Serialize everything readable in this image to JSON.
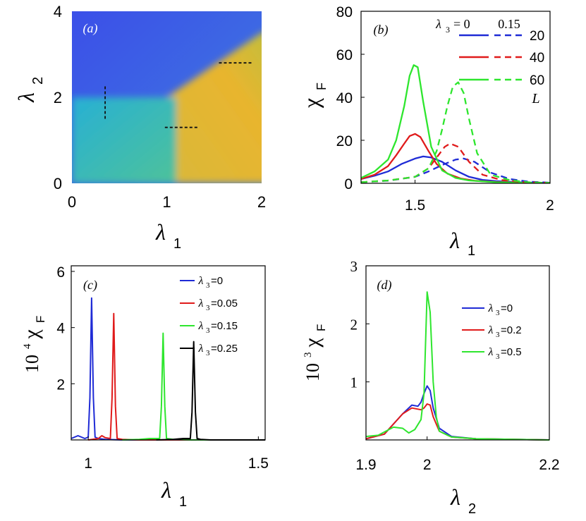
{
  "chart_data": [
    {
      "id": "a",
      "type": "heatmap",
      "panel_label": "(a)",
      "xlabel": "λ",
      "xlabel_sub": "1",
      "ylabel": "λ",
      "ylabel_sub": "2",
      "xlim": [
        0,
        2
      ],
      "ylim": [
        0,
        4
      ],
      "xticks": [
        0,
        1,
        2
      ],
      "yticks": [
        0,
        2,
        4
      ],
      "regions": [
        {
          "name": "upper",
          "color": "#3d5ce6"
        },
        {
          "name": "lower-left",
          "color": "#2ab8c4"
        },
        {
          "name": "right",
          "color": "#e6b830"
        }
      ],
      "boundaries": [
        {
          "from": [
            0,
            2.0
          ],
          "to": [
            1.0,
            2.0
          ]
        },
        {
          "from": [
            1.0,
            2.0
          ],
          "to": [
            2.0,
            3.5
          ]
        },
        {
          "from": [
            1.1,
            0
          ],
          "to": [
            1.1,
            2.0
          ]
        }
      ],
      "dashed_lines": [
        {
          "from": [
            0.35,
            1.5
          ],
          "to": [
            0.35,
            2.3
          ]
        },
        {
          "from": [
            0.98,
            1.3
          ],
          "to": [
            1.33,
            1.3
          ]
        },
        {
          "from": [
            1.55,
            2.8
          ],
          "to": [
            1.9,
            2.8
          ]
        }
      ]
    },
    {
      "id": "b",
      "type": "line",
      "panel_label": "(b)",
      "xlabel": "λ",
      "xlabel_sub": "1",
      "ylabel": "χ",
      "ylabel_sub": "F",
      "xlim": [
        1.3,
        2.0
      ],
      "ylim": [
        0,
        80
      ],
      "xtick_labels": [
        {
          "value": 1.5,
          "label": "1.5"
        },
        {
          "value": 2,
          "label": "2"
        }
      ],
      "yticks": [
        0,
        20,
        40,
        60,
        80
      ],
      "legend_header": {
        "lambda3": "λ",
        "sub": "3",
        "eq": "= 0",
        "col2": "0.15",
        "size_label": "L"
      },
      "legend_sizes": [
        "20",
        "40",
        "60"
      ],
      "series": [
        {
          "name": "λ3=0, L=20",
          "color": "#1f2bd6",
          "dash": false,
          "x": [
            1.3,
            1.35,
            1.4,
            1.45,
            1.5,
            1.53,
            1.56,
            1.6,
            1.65,
            1.7,
            1.75,
            1.8,
            1.9,
            2.0
          ],
          "y": [
            2,
            3.5,
            5.5,
            9,
            11.5,
            12.5,
            12,
            10,
            6,
            3,
            1.6,
            1,
            0.4,
            0.2
          ]
        },
        {
          "name": "λ3=0, L=40",
          "color": "#e01b1b",
          "dash": false,
          "x": [
            1.3,
            1.35,
            1.4,
            1.43,
            1.46,
            1.48,
            1.5,
            1.52,
            1.55,
            1.58,
            1.62,
            1.67,
            1.72,
            1.8,
            1.9,
            2.0
          ],
          "y": [
            2,
            4,
            8,
            13,
            18.5,
            22,
            23,
            21.5,
            15,
            9,
            4.5,
            2.2,
            1.2,
            0.6,
            0.3,
            0.2
          ]
        },
        {
          "name": "λ3=0, L=60",
          "color": "#2ee62e",
          "dash": false,
          "x": [
            1.3,
            1.35,
            1.4,
            1.43,
            1.46,
            1.48,
            1.495,
            1.51,
            1.53,
            1.56,
            1.6,
            1.65,
            1.7,
            1.8,
            1.9,
            2.0
          ],
          "y": [
            2.5,
            5.5,
            11,
            20,
            36,
            50,
            55,
            54,
            38,
            17,
            6,
            2.5,
            1.3,
            0.5,
            0.3,
            0.2
          ]
        },
        {
          "name": "λ3=0.15, L=20",
          "color": "#1f2bd6",
          "dash": true,
          "x": [
            1.3,
            1.4,
            1.5,
            1.55,
            1.6,
            1.65,
            1.68,
            1.72,
            1.78,
            1.85,
            1.92,
            2.0
          ],
          "y": [
            0.5,
            1.2,
            3,
            5.5,
            8.5,
            11,
            11.5,
            10,
            5,
            2,
            0.8,
            0.3
          ]
        },
        {
          "name": "λ3=0.15, L=40",
          "color": "#e01b1b",
          "dash": true,
          "x": [
            1.3,
            1.4,
            1.5,
            1.55,
            1.58,
            1.61,
            1.63,
            1.66,
            1.7,
            1.75,
            1.82,
            1.9,
            2.0
          ],
          "y": [
            0.5,
            1.3,
            3,
            7,
            12,
            17,
            18.5,
            17,
            10,
            4,
            1.5,
            0.6,
            0.2
          ]
        },
        {
          "name": "λ3=0.15, L=60",
          "color": "#2ee62e",
          "dash": true,
          "x": [
            1.3,
            1.4,
            1.5,
            1.55,
            1.58,
            1.6,
            1.62,
            1.64,
            1.66,
            1.68,
            1.7,
            1.73,
            1.78,
            1.85,
            1.92,
            2.0
          ],
          "y": [
            0.5,
            1.3,
            3,
            7,
            15,
            25,
            36,
            45,
            47,
            42,
            30,
            14,
            4,
            1.5,
            0.5,
            0.2
          ]
        }
      ]
    },
    {
      "id": "c",
      "type": "line",
      "panel_label": "(c)",
      "xlabel": "λ",
      "xlabel_sub": "1",
      "ylabel_prefix": "10",
      "ylabel_exp": "4",
      "ylabel": "χ",
      "ylabel_sub": "F",
      "xlim": [
        0.95,
        1.52
      ],
      "ylim": [
        0,
        6.2
      ],
      "xtick_labels": [
        {
          "value": 1,
          "label": "1"
        },
        {
          "value": 1.5,
          "label": "1.5"
        }
      ],
      "yticks": [
        2,
        4,
        6
      ],
      "legend": [
        {
          "lambda": "λ",
          "sub": "3",
          "value": "=0",
          "color": "#1f2bd6"
        },
        {
          "lambda": "λ",
          "sub": "3",
          "value": "=0.05",
          "color": "#e01b1b"
        },
        {
          "lambda": "λ",
          "sub": "3",
          "value": "=0.15",
          "color": "#2ee62e"
        },
        {
          "lambda": "λ",
          "sub": "3",
          "value": "=0.25",
          "color": "#000000"
        }
      ],
      "series": [
        {
          "name": "λ3=0",
          "color": "#1f2bd6",
          "x": [
            0.95,
            0.97,
            0.98,
            0.99,
            1.0,
            1.005,
            1.01,
            1.015,
            1.02,
            1.03,
            1.05,
            1.1,
            1.52
          ],
          "y": [
            0.05,
            0.15,
            0.1,
            0.05,
            0.1,
            1.5,
            5.05,
            1.5,
            0.1,
            0.05,
            0.02,
            0.0,
            0.0
          ]
        },
        {
          "name": "λ3=0.05",
          "color": "#e01b1b",
          "x": [
            1.0,
            1.03,
            1.04,
            1.05,
            1.065,
            1.07,
            1.075,
            1.08,
            1.085,
            1.1,
            1.15,
            1.52
          ],
          "y": [
            0.0,
            0.05,
            0.15,
            0.08,
            0.05,
            1.5,
            4.5,
            1.2,
            0.05,
            0.02,
            0.0,
            0.0
          ]
        },
        {
          "name": "λ3=0.15",
          "color": "#2ee62e",
          "x": [
            1.1,
            1.15,
            1.18,
            1.2,
            1.21,
            1.215,
            1.22,
            1.225,
            1.23,
            1.25,
            1.3,
            1.52
          ],
          "y": [
            0.0,
            0.02,
            0.05,
            0.05,
            0.05,
            1.2,
            3.8,
            1.2,
            0.05,
            0.02,
            0.0,
            0.0
          ]
        },
        {
          "name": "λ3=0.25",
          "color": "#000000",
          "x": [
            1.2,
            1.25,
            1.28,
            1.3,
            1.305,
            1.31,
            1.315,
            1.32,
            1.33,
            1.36,
            1.4,
            1.52
          ],
          "y": [
            0.0,
            0.02,
            0.05,
            0.05,
            1.0,
            3.5,
            1.0,
            0.05,
            0.02,
            0.0,
            0.0,
            0.0
          ]
        }
      ]
    },
    {
      "id": "d",
      "type": "line",
      "panel_label": "(d)",
      "xlabel": "λ",
      "xlabel_sub": "2",
      "ylabel_prefix": "10",
      "ylabel_exp": "3",
      "ylabel": "χ",
      "ylabel_sub": "F",
      "xlim": [
        1.9,
        2.2
      ],
      "ylim": [
        0,
        3
      ],
      "xtick_labels": [
        {
          "value": 1.9,
          "label": "1.9"
        },
        {
          "value": 2,
          "label": "2"
        },
        {
          "value": 2.2,
          "label": "2.2"
        }
      ],
      "yticks": [
        1,
        2,
        3
      ],
      "legend": [
        {
          "lambda": "λ",
          "sub": "3",
          "value": "=0",
          "color": "#1f2bd6"
        },
        {
          "lambda": "λ",
          "sub": "3",
          "value": "=0.2",
          "color": "#e01b1b"
        },
        {
          "lambda": "λ",
          "sub": "3",
          "value": "=0.5",
          "color": "#2ee62e"
        }
      ],
      "series": [
        {
          "name": "λ3=0",
          "color": "#1f2bd6",
          "x": [
            1.9,
            1.93,
            1.96,
            1.975,
            1.985,
            1.99,
            1.995,
            2.0,
            2.005,
            2.01,
            2.02,
            2.04,
            2.08,
            2.2
          ],
          "y": [
            0.02,
            0.1,
            0.45,
            0.6,
            0.58,
            0.65,
            0.8,
            0.93,
            0.85,
            0.55,
            0.2,
            0.06,
            0.02,
            0.0
          ]
        },
        {
          "name": "λ3=0.2",
          "color": "#e01b1b",
          "x": [
            1.9,
            1.93,
            1.96,
            1.975,
            1.99,
            1.995,
            2.0,
            2.005,
            2.01,
            2.02,
            2.04,
            2.08,
            2.2
          ],
          "y": [
            0.02,
            0.1,
            0.45,
            0.55,
            0.52,
            0.55,
            0.62,
            0.6,
            0.4,
            0.15,
            0.05,
            0.02,
            0.0
          ]
        },
        {
          "name": "λ3=0.5",
          "color": "#2ee62e",
          "x": [
            1.9,
            1.92,
            1.945,
            1.96,
            1.97,
            1.98,
            1.99,
            1.995,
            2.0,
            2.005,
            2.01,
            2.015,
            2.02,
            2.04,
            2.08,
            2.2
          ],
          "y": [
            0.06,
            0.08,
            0.22,
            0.2,
            0.12,
            0.18,
            0.35,
            0.8,
            2.55,
            2.2,
            1.0,
            0.4,
            0.15,
            0.05,
            0.02,
            0.0
          ]
        }
      ]
    }
  ]
}
